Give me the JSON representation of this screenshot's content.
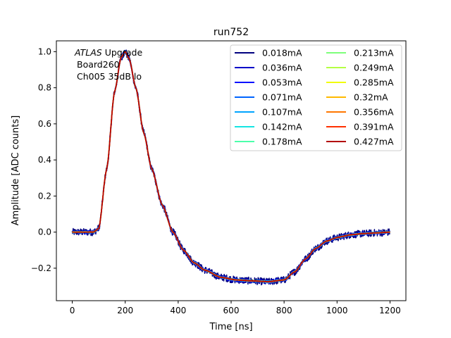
{
  "chart_data": {
    "type": "line",
    "title": "run752",
    "xlabel": "Time [ns]",
    "ylabel": "Amplitude [ADC counts]",
    "xlim": [
      -60,
      1260
    ],
    "ylim": [
      -0.38,
      1.06
    ],
    "xticks": [
      0,
      200,
      400,
      600,
      800,
      1000,
      1200
    ],
    "yticks": [
      -0.2,
      0.0,
      0.2,
      0.4,
      0.6,
      0.8,
      1.0
    ],
    "xtick_labels": [
      "0",
      "200",
      "400",
      "600",
      "800",
      "1000",
      "1200"
    ],
    "ytick_labels": [
      "−0.2",
      "0.0",
      "0.2",
      "0.4",
      "0.6",
      "0.8",
      "1.0"
    ],
    "grid": false,
    "legend_position": "top-right",
    "legend_columns": 2,
    "annotation": {
      "italic": "ATLAS",
      "rest": " Upgrade",
      "line2": "Board260",
      "line3": "Ch005 35dB lo"
    },
    "waveform_points": {
      "x": [
        0,
        80,
        100,
        130,
        160,
        185,
        200,
        215,
        240,
        270,
        300,
        340,
        380,
        420,
        460,
        500,
        560,
        620,
        680,
        740,
        800,
        840,
        880,
        920,
        960,
        1000,
        1050,
        1100,
        1150,
        1200
      ],
      "y": [
        0.0,
        0.0,
        0.02,
        0.35,
        0.78,
        0.97,
        1.0,
        0.96,
        0.8,
        0.55,
        0.35,
        0.15,
        0.0,
        -0.1,
        -0.17,
        -0.21,
        -0.25,
        -0.265,
        -0.27,
        -0.275,
        -0.265,
        -0.22,
        -0.15,
        -0.09,
        -0.05,
        -0.03,
        -0.015,
        -0.008,
        -0.004,
        0.0
      ]
    },
    "series": [
      {
        "name": "0.018mA",
        "color": "#00007f",
        "noise": 0.02
      },
      {
        "name": "0.036mA",
        "color": "#0000c8",
        "noise": 0.012
      },
      {
        "name": "0.053mA",
        "color": "#0010ff",
        "noise": 0.008
      },
      {
        "name": "0.071mA",
        "color": "#0064ff",
        "noise": 0.006
      },
      {
        "name": "0.107mA",
        "color": "#00a4ff",
        "noise": 0.005
      },
      {
        "name": "0.142mA",
        "color": "#15e5e2",
        "noise": 0.004
      },
      {
        "name": "0.178mA",
        "color": "#4cffaa",
        "noise": 0.003
      },
      {
        "name": "0.213mA",
        "color": "#7dff7a",
        "noise": 0.003
      },
      {
        "name": "0.249mA",
        "color": "#b4ff43",
        "noise": 0.002
      },
      {
        "name": "0.285mA",
        "color": "#f1fc06",
        "noise": 0.002
      },
      {
        "name": "0.32mA",
        "color": "#ffb900",
        "noise": 0.002
      },
      {
        "name": "0.356mA",
        "color": "#ff7700",
        "noise": 0.002
      },
      {
        "name": "0.391mA",
        "color": "#ff3000",
        "noise": 0.001
      },
      {
        "name": "0.427mA",
        "color": "#b30000",
        "noise": 0.001
      }
    ]
  }
}
